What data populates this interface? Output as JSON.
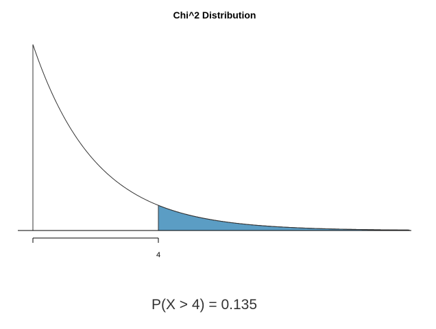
{
  "chart_data": {
    "type": "area",
    "title": "Chi^2 Distribution",
    "distribution": "chi-squared",
    "degrees_of_freedom": 2,
    "xlim": [
      0,
      12
    ],
    "shaded_region": {
      "from": 4,
      "to": 12,
      "color": "#5b9dc4"
    },
    "curve_color": "#333333",
    "x_ticks": [
      4
    ],
    "x_tick_labels": [
      "4"
    ],
    "annotation": "P(X > 4) = 0.135"
  }
}
